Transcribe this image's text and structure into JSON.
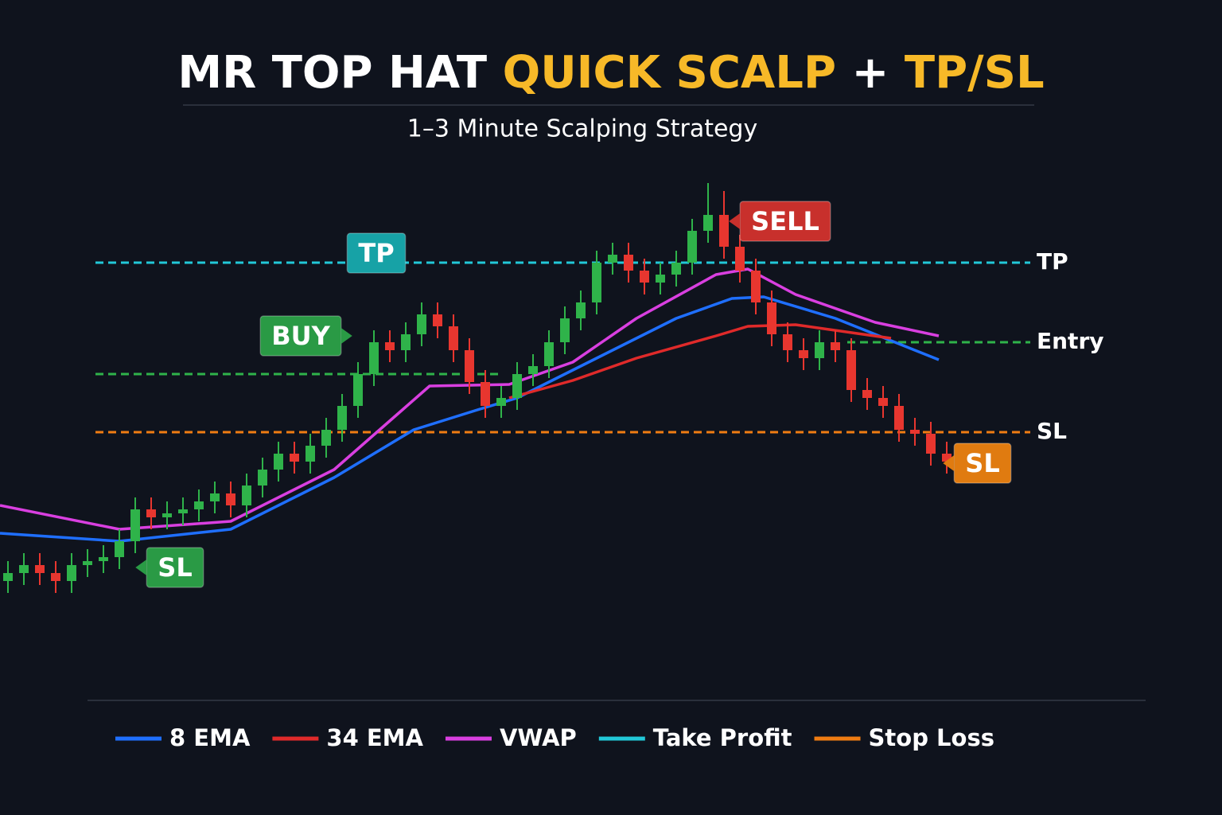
{
  "chart_data": {
    "type": "candlestick",
    "title_parts": [
      {
        "text": "MR TOP HAT",
        "color": "#ffffff"
      },
      {
        "text": "QUICK SCALP",
        "color": "#f7b928"
      },
      {
        "text": "+",
        "color": "#ffffff"
      },
      {
        "text": "TP/SL",
        "color": "#f7b928"
      }
    ],
    "subtitle": "1–3 Minute Scalping Strategy",
    "xlim": [
      -0.5,
      76.3
    ],
    "ylim": [
      0,
      120
    ],
    "up_color": "#2fb34a",
    "down_color": "#e8362f",
    "x": [
      0,
      1,
      2,
      3,
      4,
      5,
      6,
      7,
      8,
      9,
      10,
      11,
      12,
      13,
      14,
      15,
      16,
      17,
      18,
      19,
      20,
      21,
      22,
      23,
      24,
      25,
      26,
      27,
      28,
      29,
      30,
      31,
      32,
      33,
      34,
      35,
      36,
      37,
      38,
      39,
      40,
      41,
      42,
      43,
      44,
      45,
      46,
      47,
      48,
      49,
      50,
      51,
      52,
      53,
      54,
      55,
      56,
      57,
      58,
      59
    ],
    "open": [
      14,
      16,
      18,
      16,
      14,
      18,
      19,
      20,
      24,
      32,
      30,
      31,
      32,
      34,
      36,
      33,
      38,
      42,
      46,
      44,
      48,
      52,
      58,
      66,
      74,
      72,
      76,
      81,
      78,
      72,
      64,
      58,
      60,
      66,
      68,
      74,
      80,
      84,
      94,
      96,
      92,
      89,
      91,
      94,
      102,
      106,
      98,
      92,
      84,
      76,
      72,
      70,
      74,
      72,
      62,
      60,
      58,
      52,
      51,
      46
    ],
    "high": [
      19,
      21,
      21,
      19,
      21,
      22,
      23,
      27,
      35,
      35,
      34,
      35,
      37,
      39,
      39,
      41,
      45,
      49,
      49,
      51,
      55,
      61,
      69,
      77,
      77,
      79,
      84,
      84,
      81,
      75,
      67,
      63,
      69,
      71,
      77,
      83,
      87,
      97,
      99,
      99,
      95,
      94,
      97,
      105,
      114,
      112,
      101,
      95,
      87,
      79,
      75,
      77,
      77,
      75,
      65,
      63,
      61,
      55,
      54,
      49
    ],
    "low": [
      11,
      13,
      13,
      11,
      11,
      15,
      16,
      17,
      21,
      27,
      27,
      28,
      29,
      31,
      30,
      30,
      35,
      39,
      41,
      41,
      45,
      49,
      55,
      63,
      69,
      69,
      73,
      75,
      69,
      61,
      55,
      55,
      57,
      63,
      65,
      71,
      77,
      81,
      91,
      89,
      86,
      86,
      88,
      91,
      99,
      95,
      89,
      81,
      73,
      69,
      67,
      67,
      69,
      59,
      57,
      55,
      49,
      48,
      43,
      41
    ],
    "close": [
      16,
      18,
      16,
      14,
      18,
      19,
      20,
      24,
      32,
      30,
      31,
      32,
      34,
      36,
      33,
      38,
      42,
      46,
      44,
      48,
      52,
      58,
      66,
      74,
      72,
      76,
      81,
      78,
      72,
      64,
      58,
      60,
      66,
      68,
      74,
      80,
      84,
      94,
      96,
      92,
      89,
      91,
      94,
      102,
      106,
      98,
      92,
      84,
      76,
      72,
      70,
      74,
      72,
      62,
      60,
      58,
      52,
      51,
      46,
      44
    ],
    "series": [
      {
        "name": "8 EMA",
        "color": "#1f6fff",
        "x": [
          -0.5,
          7,
          14,
          20.5,
          25.5,
          29.5,
          32,
          37,
          42,
          45.5,
          47.5,
          52,
          58.5
        ],
        "values": [
          26,
          24,
          27,
          40,
          52,
          57,
          60,
          70,
          80,
          85,
          85.4,
          80,
          69.6
        ]
      },
      {
        "name": "34 EMA",
        "color": "#e02a2a",
        "x": [
          31.5,
          35.5,
          39.5,
          44.5,
          46.5,
          49.5,
          55.5
        ],
        "values": [
          60,
          64.4,
          70,
          75.6,
          78,
          78.4,
          75
        ]
      },
      {
        "name": "VWAP",
        "color": "#d93fe0",
        "x": [
          -0.5,
          7,
          14,
          20.5,
          26.5,
          31.5,
          35.5,
          39.5,
          44.5,
          46.5,
          49.5,
          54.5,
          58.5
        ],
        "values": [
          33,
          27,
          29,
          42,
          63,
          63.4,
          69,
          80,
          91,
          92.4,
          86,
          79,
          75.6
        ]
      }
    ],
    "levels": [
      {
        "label": "TP",
        "legend": "Take Profit",
        "color": "#22c8d8",
        "value": 94,
        "start": 5.5,
        "end": 64.25
      },
      {
        "color": "#2fb34a",
        "value": 66,
        "start": 5.5,
        "end": 31
      },
      {
        "label": "Entry",
        "color": "#2fb34a",
        "value": 74,
        "start": 52.75,
        "end": 64.25
      },
      {
        "label": "SL",
        "legend": "Stop Loss",
        "color": "#f07c12",
        "value": 51.4,
        "start": 5.5,
        "end": 64.25
      }
    ],
    "annotations": [
      {
        "text": "TP",
        "color": "#17a2a6",
        "x": 23.15,
        "y": 96.4
      },
      {
        "text": "BUY",
        "color": "#2a9a45",
        "x": 18.4,
        "y": 75.6,
        "pointer": "right"
      },
      {
        "text": "SELL",
        "color": "#c8302c",
        "x": 48.85,
        "y": 104.4,
        "pointer": "left"
      },
      {
        "text": "SL",
        "color": "#2a9a45",
        "x": 10.5,
        "y": 17.4,
        "pointer": "left"
      },
      {
        "text": "SL",
        "color": "#e07b10",
        "x": 61.25,
        "y": 43.6,
        "pointer": "left"
      }
    ]
  }
}
